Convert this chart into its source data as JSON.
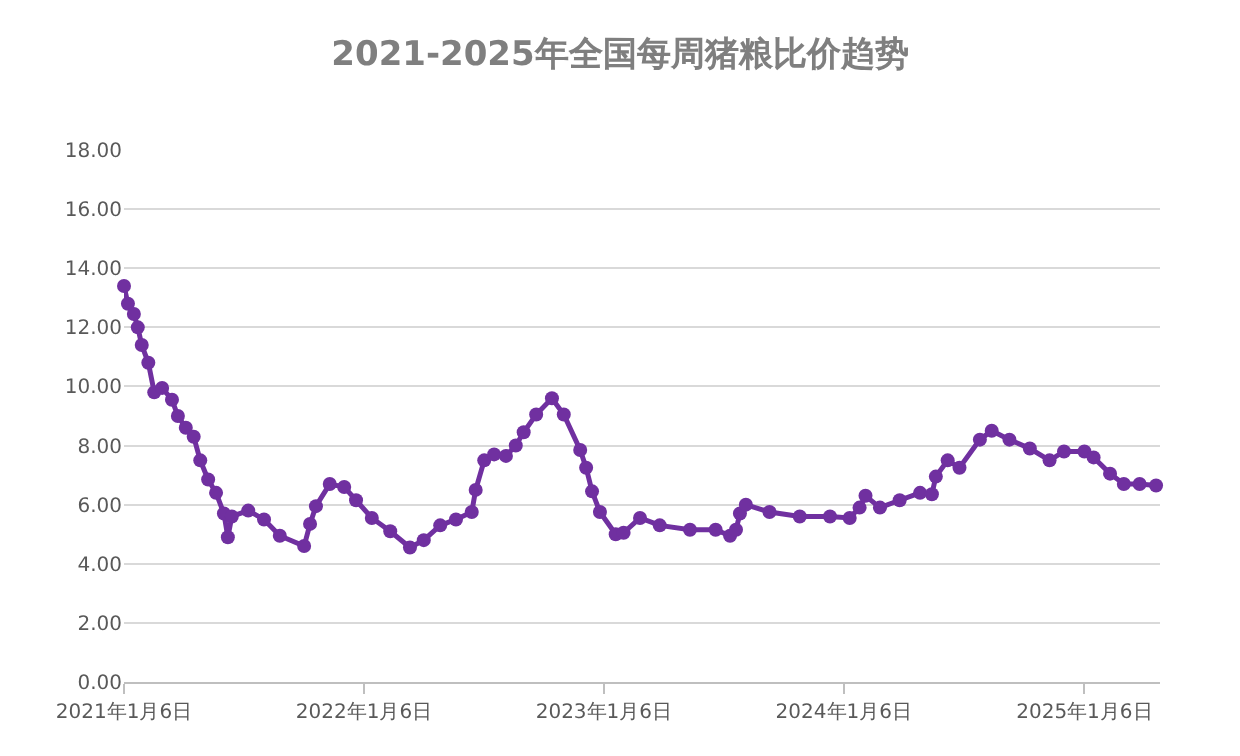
{
  "chart_data": {
    "type": "line",
    "title": "2021-2025年全国每周猪粮比价趋势",
    "x": [
      "2021-01-06",
      "2021-01-12",
      "2021-01-21",
      "2021-01-27",
      "2021-02-02",
      "2021-02-12",
      "2021-02-21",
      "2021-03-05",
      "2021-03-20",
      "2021-03-29",
      "2021-04-10",
      "2021-04-22",
      "2021-05-02",
      "2021-05-14",
      "2021-05-26",
      "2021-06-07",
      "2021-06-13",
      "2021-06-19",
      "2021-07-14",
      "2021-08-07",
      "2021-08-31",
      "2021-10-07",
      "2021-10-16",
      "2021-10-25",
      "2021-11-15",
      "2021-12-07",
      "2021-12-25",
      "2022-01-18",
      "2022-02-15",
      "2022-03-17",
      "2022-04-07",
      "2022-05-02",
      "2022-05-26",
      "2022-06-19",
      "2022-06-25",
      "2022-07-08",
      "2022-07-23",
      "2022-08-10",
      "2022-08-25",
      "2022-09-06",
      "2022-09-25",
      "2022-10-19",
      "2022-11-06",
      "2022-12-01",
      "2022-12-10",
      "2022-12-19",
      "2022-12-31",
      "2023-01-24",
      "2023-02-05",
      "2023-03-02",
      "2023-04-01",
      "2023-05-17",
      "2023-06-25",
      "2023-07-17",
      "2023-07-26",
      "2023-08-01",
      "2023-08-10",
      "2023-09-15",
      "2023-10-31",
      "2023-12-16",
      "2024-01-15",
      "2024-01-30",
      "2024-02-08",
      "2024-03-01",
      "2024-03-31",
      "2024-05-01",
      "2024-05-19",
      "2024-05-25",
      "2024-06-12",
      "2024-06-30",
      "2024-07-31",
      "2024-08-18",
      "2024-09-14",
      "2024-10-15",
      "2024-11-14",
      "2024-12-06",
      "2025-01-06",
      "2025-01-20",
      "2025-02-14",
      "2025-03-07",
      "2025-03-31",
      "2025-04-25"
    ],
    "series": [
      {
        "color": "#7030a0",
        "values": [
          13.4,
          12.8,
          12.45,
          12.0,
          11.4,
          10.8,
          9.8,
          9.95,
          9.55,
          9.0,
          8.6,
          8.3,
          7.5,
          6.85,
          6.4,
          5.7,
          4.9,
          5.6,
          5.8,
          5.5,
          4.95,
          4.6,
          5.35,
          5.95,
          6.7,
          6.6,
          6.15,
          5.55,
          5.1,
          4.55,
          4.8,
          5.3,
          5.5,
          5.75,
          6.5,
          7.5,
          7.7,
          7.65,
          8.0,
          8.45,
          9.05,
          9.6,
          9.05,
          7.85,
          7.25,
          6.45,
          5.75,
          5.0,
          5.05,
          5.55,
          5.3,
          5.15,
          5.15,
          4.95,
          5.15,
          5.7,
          6.0,
          5.75,
          5.6,
          5.6,
          5.55,
          5.9,
          6.3,
          5.9,
          6.15,
          6.4,
          6.35,
          6.95,
          7.5,
          7.25,
          8.2,
          8.5,
          8.2,
          7.9,
          7.5,
          7.8,
          7.8,
          7.6,
          7.05,
          6.7,
          6.7,
          6.65
        ]
      }
    ],
    "xlim": [
      "2021-01-06",
      "2025-05-01"
    ],
    "xticks": [
      {
        "value": "2021-01-06",
        "label": "2021年1月6日"
      },
      {
        "value": "2022-01-06",
        "label": "2022年1月6日"
      },
      {
        "value": "2023-01-06",
        "label": "2023年1月6日"
      },
      {
        "value": "2024-01-06",
        "label": "2024年1月6日"
      },
      {
        "value": "2025-01-06",
        "label": "2025年1月6日"
      }
    ],
    "ylim": [
      0,
      18
    ],
    "yticks": [
      {
        "value": 0,
        "label": "0.00"
      },
      {
        "value": 2,
        "label": "2.00"
      },
      {
        "value": 4,
        "label": "4.00"
      },
      {
        "value": 6,
        "label": "6.00"
      },
      {
        "value": 8,
        "label": "8.00"
      },
      {
        "value": 10,
        "label": "10.00"
      },
      {
        "value": 12,
        "label": "12.00"
      },
      {
        "value": 14,
        "label": "14.00"
      },
      {
        "value": 16,
        "label": "16.00"
      },
      {
        "value": 18,
        "label": "18.00"
      }
    ],
    "grid": "y",
    "legend": false,
    "marker": "circle",
    "line_style": "solid"
  }
}
